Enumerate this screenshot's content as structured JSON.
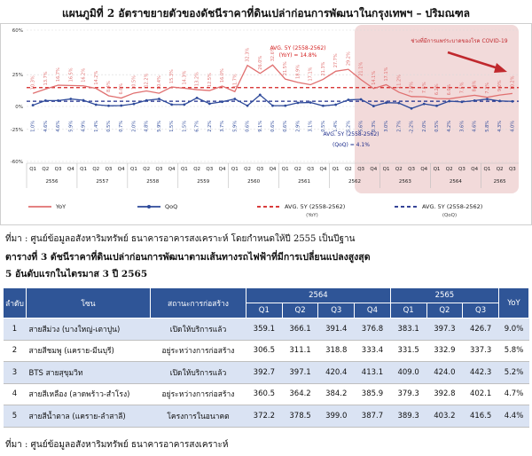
{
  "chart_title": "แผนภูมิที่ 2 อัตราขยายตัวของดัชนีราคาที่ดินเปล่าก่อนการพัฒนาในกรุงเทพฯ – ปริมณฑล",
  "chart_data": {
    "type": "line",
    "title": "แผนภูมิที่ 2 อัตราขยายตัวของดัชนีราคาที่ดินเปล่าก่อนการพัฒนาในกรุงเทพฯ – ปริมณฑล",
    "y_ticks": [
      "60%",
      "25%",
      "0%",
      "-25%",
      "-60%"
    ],
    "ylim": [
      -60,
      60
    ],
    "quarters": [
      "Q1",
      "Q2",
      "Q3",
      "Q4",
      "Q1",
      "Q2",
      "Q3",
      "Q4",
      "Q1",
      "Q2",
      "Q3",
      "Q4",
      "Q1",
      "Q2",
      "Q3",
      "Q4",
      "Q1",
      "Q2",
      "Q3",
      "Q4",
      "Q1",
      "Q2",
      "Q3",
      "Q4",
      "Q1",
      "Q2",
      "Q3",
      "Q4",
      "Q1",
      "Q2",
      "Q3",
      "Q4",
      "Q1",
      "Q2",
      "Q3",
      "Q4",
      "Q1",
      "Q2",
      "Q3"
    ],
    "years": [
      {
        "label": "2556",
        "quarters": 4
      },
      {
        "label": "2557",
        "quarters": 4
      },
      {
        "label": "2558",
        "quarters": 4
      },
      {
        "label": "2559",
        "quarters": 4
      },
      {
        "label": "2560",
        "quarters": 4
      },
      {
        "label": "2561",
        "quarters": 4
      },
      {
        "label": "2562",
        "quarters": 4
      },
      {
        "label": "2563",
        "quarters": 4
      },
      {
        "label": "2564",
        "quarters": 4
      },
      {
        "label": "2565",
        "quarters": 3
      }
    ],
    "series": [
      {
        "name": "YoY",
        "color": "#e07070",
        "values": [
          10.3,
          13.7,
          16.7,
          16.5,
          16.2,
          14.2,
          8.4,
          6.6,
          10.5,
          12.2,
          10.4,
          15.3,
          14.3,
          13.2,
          12.5,
          16.0,
          11.7,
          32.3,
          26.0,
          32.6,
          21.5,
          18.9,
          17.1,
          21.3,
          27.7,
          29.2,
          21.1,
          14.1,
          17.1,
          11.2,
          7.8,
          7.6,
          6.2,
          6.0,
          7.5,
          8.8,
          7.2,
          9.0,
          10.2
        ],
        "labels": [
          "10.3%",
          "13.7%",
          "16.7%",
          "16.5%",
          "16.2%",
          "14.2%",
          "8.4%",
          "6.6%",
          "10.5%",
          "12.2%",
          "10.4%",
          "15.3%",
          "14.3%",
          "13.2%",
          "12.5%",
          "16.0%",
          "11.7%",
          "32.3%",
          "26.0%",
          "32.6%",
          "21.5%",
          "18.9%",
          "17.1%",
          "21.3%",
          "27.7%",
          "29.2%",
          "21.1%",
          "14.1%",
          "17.1%",
          "11.2%",
          "7.8%",
          "7.6%",
          "6.2%",
          "6.0%",
          "7.5%",
          "8.8%",
          "7.2%",
          "9.0%",
          "10.2%"
        ]
      },
      {
        "name": "QoQ",
        "color": "#2e4a9a",
        "values": [
          1.0,
          4.6,
          4.6,
          5.9,
          4.9,
          1.4,
          0.5,
          0.7,
          2.0,
          4.8,
          5.9,
          1.5,
          1.5,
          6.7,
          2.2,
          3.7,
          5.9,
          0.6,
          9.1,
          0.6,
          0.6,
          2.9,
          3.1,
          0.5,
          1.4,
          5.2,
          5.6,
          0.3,
          3.0,
          2.7,
          -2.2,
          2.0,
          0.5,
          4.2,
          3.6,
          4.6,
          5.8,
          4.3,
          4.0
        ],
        "labels": [
          "1.0%",
          "4.6%",
          "4.6%",
          "5.9%",
          "4.9%",
          "1.4%",
          "0.5%",
          "0.7%",
          "2.0%",
          "4.8%",
          "5.9%",
          "1.5%",
          "1.5%",
          "6.7%",
          "2.2%",
          "3.7%",
          "5.9%",
          "0.6%",
          "9.1%",
          "0.6%",
          "0.6%",
          "2.9%",
          "3.1%",
          "0.5%",
          "1.4%",
          "5.2%",
          "5.6%",
          "0.3%",
          "3.0%",
          "2.7%",
          "-2.2%",
          "2.0%",
          "0.5%",
          "4.2%",
          "3.6%",
          "4.6%",
          "5.8%",
          "4.3%",
          "4.0%"
        ]
      }
    ],
    "averages": [
      {
        "name": "AVG. 5Y (2558-2562)",
        "suffix": "(YoY)",
        "value": 14.8,
        "label": "AVG. 5Y (2558-2562)",
        "label2": "(YoY) = 14.8%",
        "color": "#d42020"
      },
      {
        "name": "AVG. 5Y (2558-2562)",
        "suffix": "(QoQ)",
        "value": 4.1,
        "label": "AVG. 5Y (2558-2562)",
        "label2": "(QoQ) = 4.1%",
        "color": "#1a2a8a"
      }
    ],
    "covid_note": "ช่วงที่มีการแพร่ระบาดของโรค COVID-19",
    "covid_start_index": 26,
    "legend": [
      {
        "label": "YoY",
        "color": "#e07070",
        "style": "solid",
        "marker": "none"
      },
      {
        "label": "QoQ",
        "color": "#2e4a9a",
        "style": "solid",
        "marker": "circle"
      },
      {
        "label": "AVG. 5Y (2558-2562)",
        "sub": "(YoY)",
        "color": "#d42020",
        "style": "dashed"
      },
      {
        "label": "AVG. 5Y (2558-2562)",
        "sub": "(QoQ)",
        "color": "#1a2a8a",
        "style": "dashed"
      }
    ],
    "colors": {
      "covid_shade": "#f2dada",
      "arrow": "#c0282d",
      "grid": "#d9d9d9"
    }
  },
  "source_1": "ที่มา : ศูนย์ข้อมูลอสังหาริมทรัพย์ ธนาคารอาคารสงเคราะห์ โดยกำหนดให้ปี 2555 เป็นปีฐาน",
  "table_caption_line1": "ตารางที่ 3 ดัชนีราคาที่ดินเปล่าก่อนการพัฒนาตามเส้นทางรถไฟฟ้าที่มีการเปลี่ยนแปลงสูงสุด",
  "table_caption_line2": "5 อันดับแรกในไตรมาส 3 ปี 2565",
  "table": {
    "headers": {
      "rank": "ลำดับ",
      "route": "โซน",
      "status": "สถานะการก่อสร้าง",
      "year_2564": "2564",
      "year_2565": "2565",
      "yoy": "YoY",
      "q_2564": [
        "Q1",
        "Q2",
        "Q3",
        "Q4"
      ],
      "q_2565": [
        "Q1",
        "Q2",
        "Q3"
      ]
    },
    "rows": [
      {
        "rank": "1",
        "route": "สายสีม่วง (บางใหญ่-เตาปูน)",
        "status": "เปิดให้บริการแล้ว",
        "v2564": [
          "359.1",
          "366.1",
          "391.4",
          "376.8"
        ],
        "v2565": [
          "383.1",
          "397.3",
          "426.7"
        ],
        "yoy": "9.0%"
      },
      {
        "rank": "2",
        "route": "สายสีชมพู (แคราย-มีนบุรี)",
        "status": "อยู่ระหว่างการก่อสร้าง",
        "v2564": [
          "306.5",
          "311.1",
          "318.8",
          "333.4"
        ],
        "v2565": [
          "331.5",
          "332.9",
          "337.3"
        ],
        "yoy": "5.8%"
      },
      {
        "rank": "3",
        "route": "BTS สายสุขุมวิท",
        "status": "เปิดให้บริการแล้ว",
        "v2564": [
          "392.7",
          "397.1",
          "420.4",
          "413.1"
        ],
        "v2565": [
          "409.0",
          "424.0",
          "442.3"
        ],
        "yoy": "5.2%"
      },
      {
        "rank": "4",
        "route": "สายสีเหลือง (ลาดพร้าว-สำโรง)",
        "status": "อยู่ระหว่างการก่อสร้าง",
        "v2564": [
          "360.5",
          "364.2",
          "384.2",
          "385.9"
        ],
        "v2565": [
          "379.3",
          "392.8",
          "402.1"
        ],
        "yoy": "4.7%"
      },
      {
        "rank": "5",
        "route": "สายสีน้ำตาล (แคราย-ลำสาลี)",
        "status": "โครงการในอนาคต",
        "v2564": [
          "372.2",
          "378.5",
          "399.0",
          "387.7"
        ],
        "v2565": [
          "389.3",
          "403.2",
          "416.5"
        ],
        "yoy": "4.4%"
      }
    ]
  },
  "source_2": "ที่มา : ศูนย์ข้อมูลอสังหาริมทรัพย์ ธนาคารอาคารสงเคราะห์"
}
